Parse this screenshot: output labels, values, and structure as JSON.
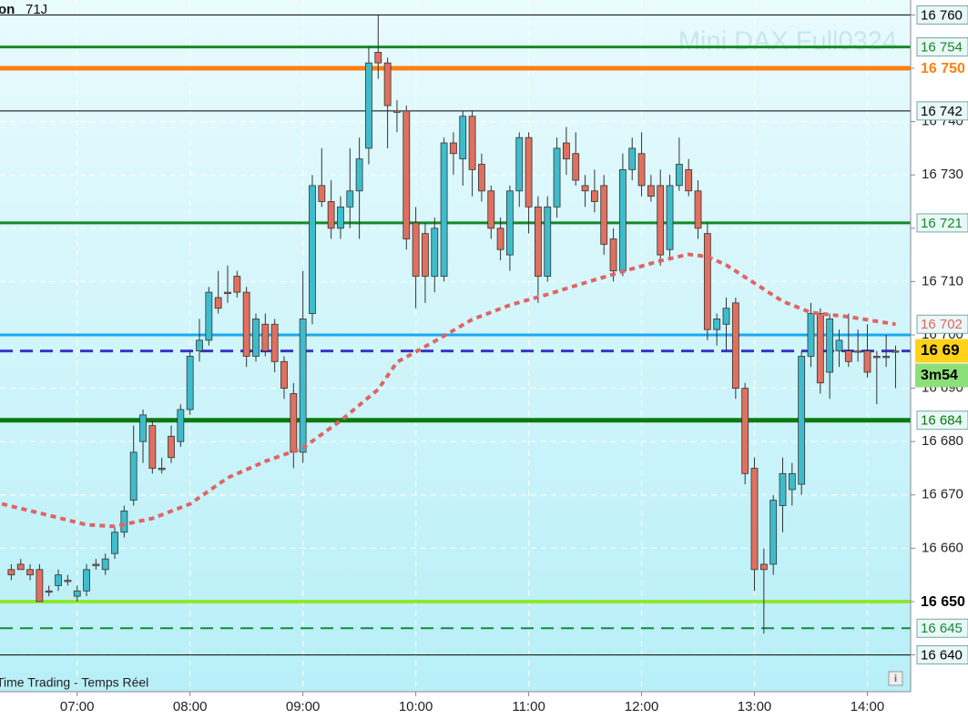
{
  "chart_data": {
    "type": "candlestick",
    "header": [
      "on",
      "71J"
    ],
    "watermark": "Mini DAX Full0324",
    "footer": "Time Trading - Temps Réel",
    "up_color": "#3fbccb",
    "down_color": "#e0705f",
    "x": [
      "06:25",
      "06:30",
      "06:35",
      "06:40",
      "06:45",
      "06:50",
      "06:55",
      "07:00",
      "07:05",
      "07:10",
      "07:15",
      "07:20",
      "07:25",
      "07:30",
      "07:35",
      "07:40",
      "07:45",
      "07:50",
      "07:55",
      "08:00",
      "08:05",
      "08:10",
      "08:15",
      "08:20",
      "08:25",
      "08:30",
      "08:35",
      "08:40",
      "08:45",
      "08:50",
      "08:55",
      "09:00",
      "09:05",
      "09:10",
      "09:15",
      "09:20",
      "09:25",
      "09:30",
      "09:35",
      "09:40",
      "09:45",
      "09:50",
      "09:55",
      "10:00",
      "10:05",
      "10:10",
      "10:15",
      "10:20",
      "10:25",
      "10:30",
      "10:35",
      "10:40",
      "10:45",
      "10:50",
      "10:55",
      "11:00",
      "11:05",
      "11:10",
      "11:15",
      "11:20",
      "11:25",
      "11:30",
      "11:35",
      "11:40",
      "11:45",
      "11:50",
      "11:55",
      "12:00",
      "12:05",
      "12:10",
      "12:15",
      "12:20",
      "12:25",
      "12:30",
      "12:35",
      "12:40",
      "12:45",
      "12:50",
      "12:55",
      "13:00",
      "13:05",
      "13:10",
      "13:15",
      "13:20",
      "13:25",
      "13:30",
      "13:35",
      "13:40",
      "13:45",
      "13:50",
      "13:55",
      "14:00",
      "14:05",
      "14:10",
      "14:15"
    ],
    "open": [
      16656,
      16657,
      16656,
      16656,
      16652,
      16653,
      16654,
      16651,
      16652,
      16657,
      16656,
      16659,
      16663,
      16669,
      16680,
      16683,
      16675,
      16681,
      16680,
      16686,
      16697,
      16699,
      16707,
      16708,
      16711,
      16708,
      16696,
      16702,
      16702,
      16695,
      16689,
      16678,
      16704,
      16728,
      16725,
      16720,
      16724,
      16727,
      16735,
      16753,
      16751,
      16742,
      16742,
      16721,
      16719,
      16711,
      16711,
      16736,
      16733,
      16741,
      16732,
      16727,
      16720,
      16715,
      16727,
      16737,
      16724,
      16711,
      16724,
      16736,
      16734,
      16728,
      16727,
      16728,
      16718,
      16712,
      16731,
      16734,
      16728,
      16728,
      16716,
      16728,
      16731,
      16727,
      16719,
      16701,
      16702,
      16706,
      16690,
      16675,
      16657,
      16657,
      16668,
      16671,
      16672,
      16696,
      16704,
      16693,
      16697,
      16697,
      16697,
      16697,
      16696,
      16696,
      16697
    ],
    "high": [
      16657,
      16658,
      16657,
      16657,
      16653,
      16656,
      16655,
      16653,
      16657,
      16658,
      16659,
      16664,
      16668,
      16683,
      16686,
      16684,
      16677,
      16683,
      16687,
      16697,
      16703,
      16709,
      16712,
      16713,
      16712,
      16709,
      16704,
      16704,
      16703,
      16696,
      16691,
      16712,
      16730,
      16735,
      16729,
      16726,
      16735,
      16737,
      16754,
      16760,
      16752,
      16744,
      16743,
      16724,
      16721,
      16722,
      16737,
      16738,
      16742,
      16742,
      16734,
      16728,
      16722,
      16728,
      16738,
      16738,
      16726,
      16726,
      16737,
      16739,
      16738,
      16730,
      16731,
      16730,
      16720,
      16734,
      16737,
      16738,
      16730,
      16731,
      16730,
      16737,
      16733,
      16729,
      16721,
      16704,
      16707,
      16707,
      16691,
      16677,
      16660,
      16670,
      16677,
      16676,
      16697,
      16706,
      16705,
      16704,
      16701,
      16704,
      16701,
      16702,
      16697,
      16700,
      16698
    ],
    "low": [
      16654,
      16656,
      16654,
      16650,
      16651,
      16652,
      16653,
      16650,
      16651,
      16656,
      16655,
      16658,
      16662,
      16668,
      16676,
      16674,
      16674,
      16676,
      16679,
      16685,
      16695,
      16698,
      16704,
      16706,
      16707,
      16694,
      16695,
      16696,
      16693,
      16688,
      16675,
      16676,
      16702,
      16724,
      16718,
      16718,
      16720,
      16718,
      16732,
      16748,
      16735,
      16738,
      16716,
      16705,
      16706,
      16708,
      16710,
      16730,
      16728,
      16726,
      16725,
      16718,
      16714,
      16712,
      16724,
      16719,
      16706,
      16710,
      16722,
      16730,
      16728,
      16724,
      16723,
      16715,
      16710,
      16711,
      16729,
      16726,
      16725,
      16713,
      16714,
      16727,
      16726,
      16718,
      16699,
      16698,
      16697,
      16688,
      16672,
      16652,
      16644,
      16655,
      16663,
      16668,
      16670,
      16694,
      16689,
      16688,
      16694,
      16694,
      16695,
      16692,
      16687,
      16694,
      16690
    ],
    "close": [
      16655,
      16656,
      16655,
      16650,
      16652,
      16655,
      16654,
      16652,
      16656,
      16657,
      16658,
      16663,
      16667,
      16678,
      16685,
      16675,
      16675,
      16677,
      16686,
      16696,
      16699,
      16708,
      16705,
      16708,
      16708,
      16696,
      16703,
      16697,
      16695,
      16690,
      16678,
      16703,
      16728,
      16725,
      16720,
      16724,
      16727,
      16733,
      16751,
      16751,
      16743,
      16742,
      16718,
      16711,
      16711,
      16720,
      16736,
      16734,
      16741,
      16731,
      16727,
      16720,
      16716,
      16727,
      16737,
      16724,
      16711,
      16724,
      16735,
      16733,
      16729,
      16727,
      16725,
      16717,
      16712,
      16731,
      16735,
      16728,
      16726,
      16715,
      16728,
      16732,
      16727,
      16720,
      16701,
      16703,
      16705,
      16690,
      16674,
      16656,
      16656,
      16669,
      16674,
      16674,
      16696,
      16704,
      16691,
      16703,
      16699,
      16695,
      16697,
      16693,
      16696,
      16696,
      16697
    ],
    "ma": {
      "color": "#e06464",
      "x": [
        "06:20",
        "06:40",
        "07:05",
        "07:20",
        "07:40",
        "08:00",
        "08:20",
        "08:40",
        "09:00",
        "09:20",
        "09:40",
        "09:50",
        "10:10",
        "10:30",
        "10:50",
        "11:10",
        "11:30",
        "11:50",
        "12:10",
        "12:25",
        "12:35",
        "12:45",
        "13:00",
        "13:15",
        "13:30",
        "13:50",
        "14:15"
      ],
      "values": [
        16668.3,
        16666.6,
        16664.4,
        16664.1,
        16665.6,
        16668.3,
        16673.2,
        16676.3,
        16678.8,
        16683.9,
        16689.8,
        16694.9,
        16698.8,
        16702.9,
        16705.6,
        16707.6,
        16709.8,
        16711.9,
        16713.9,
        16715.1,
        16714.7,
        16713.1,
        16709.7,
        16706.3,
        16704.2,
        16703.4,
        16702
      ]
    },
    "ma_label": "16 702",
    "levels": [
      {
        "value": 16760,
        "label": "16 760",
        "color": "#000000",
        "width": 1,
        "dash": false,
        "box": true
      },
      {
        "value": 16754,
        "label": "16 754",
        "color": "#138a26",
        "width": 3,
        "dash": false,
        "box": true
      },
      {
        "value": 16750,
        "label": "16 750",
        "color": "#ff7f10",
        "width": 5,
        "dash": false,
        "box": false
      },
      {
        "value": 16742,
        "label": "16 742",
        "color": "#000000",
        "width": 1,
        "dash": false,
        "box": true
      },
      {
        "value": 16721,
        "label": "16 721",
        "color": "#138a26",
        "width": 3,
        "dash": false,
        "box": true
      },
      {
        "value": 16700,
        "color": "#1aa8f0",
        "width": 3,
        "dash": false
      },
      {
        "value": 16697,
        "color": "#3636c8",
        "width": 3,
        "dash": true,
        "current": true
      },
      {
        "value": 16684,
        "label": "16 684",
        "color": "#0b7a10",
        "width": 5,
        "dash": false,
        "box": true
      },
      {
        "value": 16650,
        "label": "16 650",
        "color": "#8ee830",
        "width": 4,
        "dash": false,
        "box": false
      },
      {
        "value": 16645,
        "label": "16 645",
        "color": "#138a3a",
        "width": 2,
        "dash": true,
        "box": true
      },
      {
        "value": 16640,
        "label": "16 640",
        "color": "#000000",
        "width": 1,
        "dash": false,
        "box": true
      }
    ],
    "price_tag": "16 69",
    "timer": "3m54",
    "ylim": [
      16762.8,
      16633.1
    ],
    "yticks": [
      {
        "value": 16640,
        "label": "16 640"
      },
      {
        "value": 16650,
        "label": "16 650"
      },
      {
        "value": 16660,
        "label": "16 660"
      },
      {
        "value": 16670,
        "label": "16 670"
      },
      {
        "value": 16680,
        "label": "16 680"
      },
      {
        "value": 16690,
        "label": "16 690"
      },
      {
        "value": 16700,
        "label": "16 700"
      },
      {
        "value": 16710,
        "label": "16 710"
      },
      {
        "value": 16720,
        "label": "16 720"
      },
      {
        "value": 16730,
        "label": "16 730"
      },
      {
        "value": 16740,
        "label": "16 740"
      },
      {
        "value": 16750,
        "label": "16 750"
      },
      {
        "value": 16760,
        "label": "16 760"
      }
    ],
    "xlim": [
      "06:19",
      "14:23"
    ],
    "xticks": [
      "07:00",
      "08:00",
      "09:00",
      "10:00",
      "11:00",
      "12:00",
      "13:00",
      "14:00"
    ],
    "grid": true
  }
}
